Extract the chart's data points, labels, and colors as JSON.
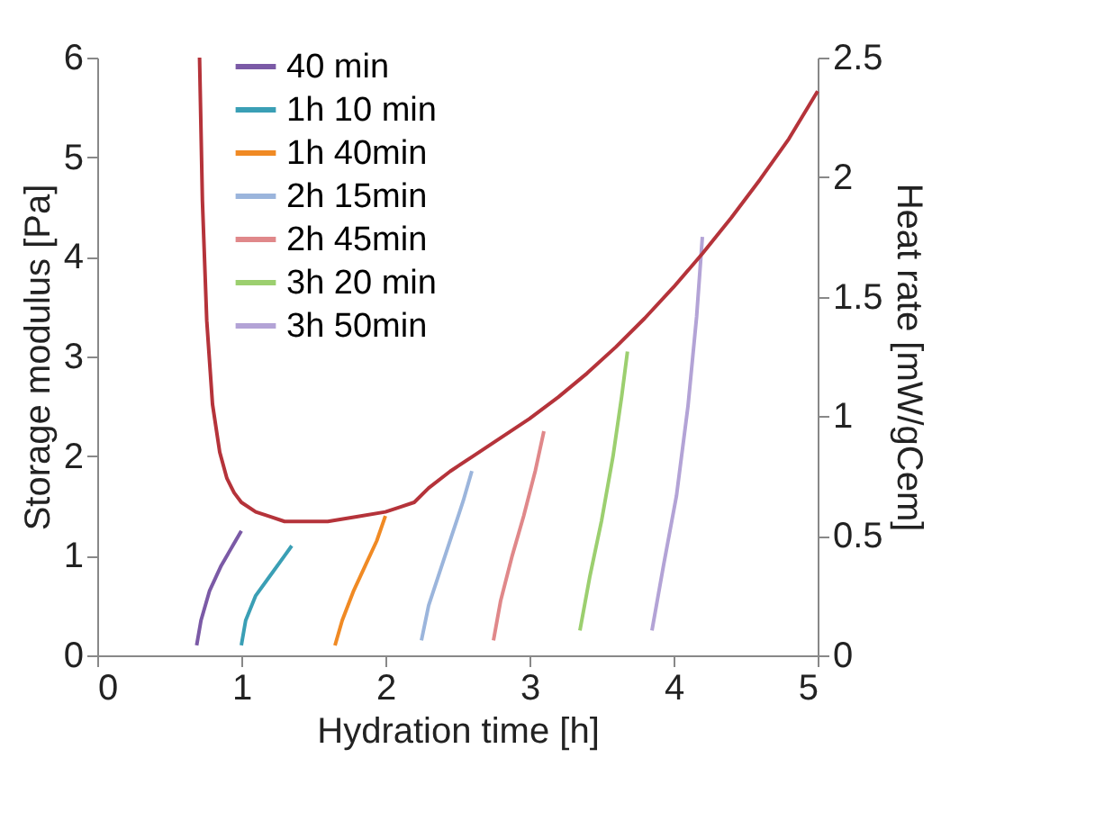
{
  "chart_data": {
    "type": "line",
    "xlabel": "Hydration time [h]",
    "ylabel": "Storage modulus [Pa]",
    "y2label": "Heat rate [mW/gCem]",
    "xlim": [
      0,
      5
    ],
    "xticks": [
      0,
      1,
      2,
      3,
      4,
      5
    ],
    "ylim": [
      0,
      6
    ],
    "yticks": [
      0,
      1,
      2,
      3,
      4,
      5,
      6
    ],
    "y2lim": [
      0,
      2.5
    ],
    "y2ticks": [
      0,
      0.5,
      1,
      1.5,
      2,
      2.5
    ],
    "grid": false,
    "legend": "top left",
    "marker": "none",
    "line_style": "solid",
    "series": [
      {
        "name": "40 min",
        "color": "#7b5aa6",
        "x": [
          0.69,
          0.72,
          0.78,
          0.86,
          0.94,
          1.0
        ],
        "values": [
          0.1,
          0.35,
          0.65,
          0.9,
          1.1,
          1.25
        ]
      },
      {
        "name": "1h 10 min",
        "color": "#3a9fb5",
        "x": [
          1.0,
          1.03,
          1.1,
          1.2,
          1.3,
          1.35
        ],
        "values": [
          0.1,
          0.35,
          0.6,
          0.8,
          1.0,
          1.1
        ]
      },
      {
        "name": "1h 40min",
        "color": "#f08a24",
        "x": [
          1.65,
          1.7,
          1.78,
          1.86,
          1.94,
          2.0
        ],
        "values": [
          0.1,
          0.35,
          0.65,
          0.9,
          1.15,
          1.4
        ]
      },
      {
        "name": "2h 15min",
        "color": "#9bb5dc",
        "x": [
          2.25,
          2.3,
          2.38,
          2.46,
          2.54,
          2.6
        ],
        "values": [
          0.15,
          0.5,
          0.85,
          1.2,
          1.55,
          1.85
        ]
      },
      {
        "name": "2h 45min",
        "color": "#e0888a",
        "x": [
          2.75,
          2.8,
          2.88,
          2.96,
          3.04,
          3.1
        ],
        "values": [
          0.15,
          0.55,
          1.0,
          1.4,
          1.85,
          2.25
        ]
      },
      {
        "name": "3h 20 min",
        "color": "#9ccf6f",
        "x": [
          3.35,
          3.42,
          3.5,
          3.58,
          3.64,
          3.68
        ],
        "values": [
          0.25,
          0.8,
          1.35,
          2.0,
          2.6,
          3.05
        ]
      },
      {
        "name": "3h 50min",
        "color": "#b3a3d6",
        "x": [
          3.85,
          3.93,
          4.02,
          4.1,
          4.16,
          4.2
        ],
        "values": [
          0.25,
          0.9,
          1.6,
          2.5,
          3.4,
          4.2
        ]
      },
      {
        "color": "#b5333a",
        "axis": "y2",
        "x": [
          0.71,
          0.73,
          0.76,
          0.8,
          0.85,
          0.9,
          0.95,
          1.0,
          1.1,
          1.2,
          1.3,
          1.45,
          1.6,
          1.8,
          2.0,
          2.1,
          2.2,
          2.3,
          2.45,
          2.6,
          2.8,
          3.0,
          3.2,
          3.4,
          3.6,
          3.8,
          4.0,
          4.2,
          4.4,
          4.6,
          4.8,
          5.0
        ],
        "values": [
          2.5,
          1.9,
          1.4,
          1.05,
          0.85,
          0.74,
          0.68,
          0.64,
          0.6,
          0.58,
          0.56,
          0.56,
          0.56,
          0.58,
          0.6,
          0.62,
          0.64,
          0.7,
          0.77,
          0.83,
          0.91,
          0.99,
          1.08,
          1.18,
          1.29,
          1.41,
          1.54,
          1.68,
          1.83,
          1.99,
          2.16,
          2.36
        ]
      }
    ]
  }
}
